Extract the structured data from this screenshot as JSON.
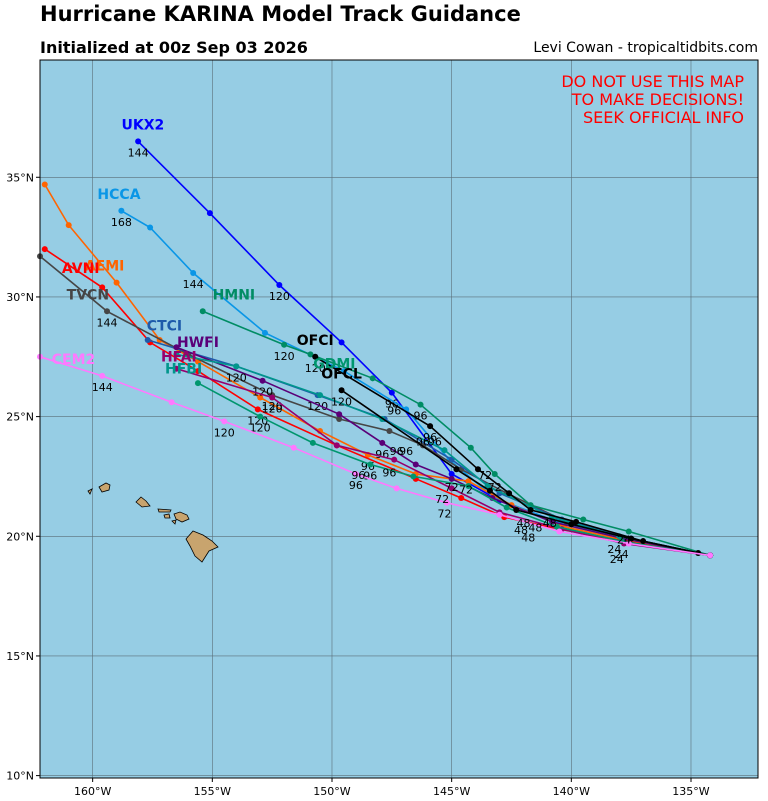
{
  "header": {
    "title": "Hurricane KARINA Model Track Guidance",
    "subtitle": "Initialized at 00z Sep 03 2026",
    "credit": "Levi Cowan - tropicaltidbits.com"
  },
  "warning": [
    "DO NOT USE THIS MAP",
    "TO MAKE DECISIONS!",
    "SEEK OFFICIAL INFO"
  ],
  "colors": {
    "ocean": "#96cde4",
    "land": "#c8a46e",
    "grid": "#5a6e78"
  },
  "axes": {
    "lon_range": [
      -162.2,
      -132.2
    ],
    "lat_range": [
      9.9,
      39.9
    ],
    "x_ticks": [
      -160,
      -155,
      -150,
      -145,
      -140,
      -135
    ],
    "x_tick_labels": [
      "160°W",
      "155°W",
      "150°W",
      "145°W",
      "140°W",
      "135°W"
    ],
    "y_ticks": [
      10,
      15,
      20,
      25,
      30,
      35
    ],
    "y_tick_labels": [
      "10°N",
      "15°N",
      "20°N",
      "25°N",
      "30°N",
      "35°N"
    ]
  },
  "chart_data": {
    "type": "map-tracks",
    "tracks": [
      {
        "name": "UKX2",
        "color": "#0000ff",
        "label_at": [
          -157.9,
          37.0
        ],
        "points": [
          [
            -134.2,
            19.2
          ],
          [
            -137.5,
            19.9
          ],
          [
            -140.3,
            20.5
          ],
          [
            -143.0,
            21.5
          ],
          [
            -145.0,
            22.6
          ],
          [
            -147.5,
            26.0
          ],
          [
            -149.6,
            28.1
          ],
          [
            -152.2,
            30.5
          ],
          [
            -155.1,
            33.5
          ],
          [
            -158.1,
            36.5
          ]
        ],
        "hour_labels": [
          {
            "pos": [
              -158.1,
              36.5
            ],
            "text": "144"
          },
          {
            "pos": [
              -152.2,
              30.5
            ],
            "text": "120"
          },
          {
            "pos": [
              -147.5,
              26.0
            ],
            "text": "96"
          }
        ]
      },
      {
        "name": "HCCA",
        "color": "#0a96e6",
        "label_at": [
          -158.9,
          34.1
        ],
        "points": [
          [
            -134.2,
            19.2
          ],
          [
            -137.8,
            19.9
          ],
          [
            -140.6,
            20.6
          ],
          [
            -143.2,
            21.6
          ],
          [
            -145.1,
            23.2
          ],
          [
            -146.9,
            25.3
          ],
          [
            -149.5,
            26.9
          ],
          [
            -152.8,
            28.5
          ],
          [
            -155.8,
            31.0
          ],
          [
            -157.6,
            32.9
          ],
          [
            -158.8,
            33.6
          ]
        ],
        "hour_labels": [
          {
            "pos": [
              -158.8,
              33.6
            ],
            "text": "168"
          },
          {
            "pos": [
              -155.8,
              31.0
            ],
            "text": "144"
          }
        ]
      },
      {
        "name": "AEMI",
        "color": "#ff6400",
        "label_at": [
          -159.5,
          31.1
        ],
        "points": [
          [
            -134.2,
            19.2
          ],
          [
            -137.6,
            19.8
          ],
          [
            -140.3,
            20.4
          ],
          [
            -142.5,
            21.3
          ],
          [
            -144.3,
            22.3
          ],
          [
            -146.5,
            22.6
          ],
          [
            -148.5,
            23.4
          ],
          [
            -150.5,
            24.4
          ],
          [
            -153.0,
            25.8
          ],
          [
            -155.6,
            27.3
          ],
          [
            -157.2,
            28.2
          ],
          [
            -159.0,
            30.6
          ],
          [
            -161.0,
            33.0
          ],
          [
            -162.0,
            34.7
          ]
        ],
        "hour_labels": [
          {
            "pos": [
              -148.5,
              23.4
            ],
            "text": "96"
          }
        ]
      },
      {
        "name": "AVNI",
        "color": "#ff0000",
        "label_at": [
          -160.5,
          31.0
        ],
        "points": [
          [
            -134.2,
            19.2
          ],
          [
            -137.8,
            19.8
          ],
          [
            -140.5,
            20.3
          ],
          [
            -142.8,
            20.8
          ],
          [
            -144.6,
            21.6
          ],
          [
            -146.5,
            22.4
          ],
          [
            -149.8,
            23.8
          ],
          [
            -153.1,
            25.3
          ],
          [
            -155.6,
            26.9
          ],
          [
            -157.6,
            28.1
          ],
          [
            -159.6,
            30.4
          ],
          [
            -162.0,
            32.0
          ]
        ],
        "hour_labels": [
          {
            "pos": [
              -153.1,
              25.3
            ],
            "text": "120"
          }
        ]
      },
      {
        "name": "TVCN",
        "color": "#464646",
        "label_at": [
          -160.2,
          29.9
        ],
        "points": [
          [
            -134.2,
            19.2
          ],
          [
            -137.5,
            19.9
          ],
          [
            -140.2,
            20.6
          ],
          [
            -142.7,
            21.8
          ],
          [
            -144.6,
            22.8
          ],
          [
            -146.2,
            23.8
          ],
          [
            -147.6,
            24.4
          ],
          [
            -149.7,
            24.9
          ],
          [
            -152.5,
            25.9
          ],
          [
            -156.0,
            27.6
          ],
          [
            -159.4,
            29.4
          ],
          [
            -162.2,
            31.7
          ]
        ],
        "hour_labels": [
          {
            "pos": [
              -159.4,
              29.4
            ],
            "text": "144"
          },
          {
            "pos": [
              -152.5,
              25.9
            ],
            "text": "120"
          }
        ]
      },
      {
        "name": "CTCI",
        "color": "#1e5aaa",
        "label_at": [
          -157.0,
          28.6
        ],
        "points": [
          [
            -134.2,
            19.2
          ],
          [
            -137.5,
            19.9
          ],
          [
            -140.4,
            20.7
          ],
          [
            -143.0,
            21.8
          ],
          [
            -145.0,
            23.2
          ],
          [
            -147.8,
            24.9
          ],
          [
            -150.6,
            25.9
          ],
          [
            -154.0,
            27.1
          ],
          [
            -157.7,
            28.2
          ]
        ],
        "hour_labels": [
          {
            "pos": [
              -150.6,
              25.9
            ],
            "text": "120"
          }
        ]
      },
      {
        "name": "HMNI",
        "color": "#008c64",
        "label_at": [
          -154.1,
          29.9
        ],
        "points": [
          [
            -134.2,
            19.2
          ],
          [
            -137.6,
            20.2
          ],
          [
            -139.5,
            20.7
          ],
          [
            -141.7,
            21.3
          ],
          [
            -143.2,
            22.6
          ],
          [
            -144.2,
            23.7
          ],
          [
            -146.3,
            25.5
          ],
          [
            -148.3,
            26.6
          ],
          [
            -150.9,
            27.6
          ],
          [
            -152.0,
            28.0
          ],
          [
            -155.4,
            29.4
          ]
        ],
        "hour_labels": [
          {
            "pos": [
              -152.0,
              28.0
            ],
            "text": "120"
          },
          {
            "pos": [
              -146.3,
              25.5
            ],
            "text": "96"
          }
        ]
      },
      {
        "name": "HWFI",
        "color": "#5a0078",
        "label_at": [
          -155.6,
          27.9
        ],
        "points": [
          [
            -134.2,
            19.2
          ],
          [
            -137.8,
            19.9
          ],
          [
            -140.8,
            20.6
          ],
          [
            -143.3,
            21.6
          ],
          [
            -145.0,
            22.4
          ],
          [
            -146.5,
            23.0
          ],
          [
            -147.9,
            23.9
          ],
          [
            -149.7,
            25.1
          ],
          [
            -152.9,
            26.5
          ],
          [
            -156.5,
            27.9
          ]
        ],
        "hour_labels": [
          {
            "pos": [
              -152.9,
              26.5
            ],
            "text": "120"
          },
          {
            "pos": [
              -147.9,
              23.9
            ],
            "text": "96"
          }
        ]
      },
      {
        "name": "HFAI",
        "color": "#96006e",
        "label_at": [
          -156.4,
          27.3
        ],
        "points": [
          [
            -134.2,
            19.2
          ],
          [
            -137.8,
            19.7
          ],
          [
            -140.4,
            20.3
          ],
          [
            -143.0,
            21.0
          ],
          [
            -145.0,
            22.0
          ],
          [
            -147.4,
            23.2
          ],
          [
            -149.8,
            23.8
          ],
          [
            -152.5,
            25.8
          ],
          [
            -156.5,
            27.0
          ]
        ],
        "hour_labels": [
          {
            "pos": [
              -152.5,
              25.8
            ],
            "text": "120"
          }
        ]
      },
      {
        "name": "HFBI",
        "color": "#00968c",
        "label_at": [
          -156.2,
          26.8
        ],
        "points": [
          [
            -134.2,
            19.2
          ],
          [
            -138.0,
            20.0
          ],
          [
            -140.8,
            20.8
          ],
          [
            -143.5,
            22.1
          ],
          [
            -145.3,
            23.6
          ],
          [
            -147.9,
            24.9
          ],
          [
            -150.5,
            25.9
          ],
          [
            -154.0,
            27.1
          ],
          [
            -156.5,
            27.6
          ]
        ],
        "hour_labels": [
          {
            "pos": [
              -154.0,
              27.1
            ],
            "text": "120"
          }
        ]
      },
      {
        "name": "GDMI",
        "color": "#00966e",
        "label_at": [
          -149.9,
          27.0
        ],
        "points": [
          [
            -134.2,
            19.2
          ],
          [
            -137.9,
            19.8
          ],
          [
            -140.6,
            20.4
          ],
          [
            -142.7,
            21.2
          ],
          [
            -144.3,
            22.1
          ],
          [
            -146.6,
            22.5
          ],
          [
            -148.4,
            23.0
          ],
          [
            -150.8,
            23.9
          ],
          [
            -153.0,
            25.0
          ],
          [
            -155.6,
            26.4
          ]
        ],
        "hour_labels": [
          {
            "pos": [
              -153.0,
              25.0
            ],
            "text": "120"
          },
          {
            "pos": [
              -148.4,
              23.0
            ],
            "text": "96"
          }
        ]
      },
      {
        "name": "OFCI",
        "color": "#000000",
        "label_at": [
          -150.7,
          28.0
        ],
        "points": [
          [
            -134.2,
            19.2
          ],
          [
            -137.0,
            19.8
          ],
          [
            -139.8,
            20.6
          ],
          [
            -141.7,
            21.1
          ],
          [
            -142.6,
            21.8
          ],
          [
            -143.9,
            22.8
          ],
          [
            -145.9,
            24.6
          ],
          [
            -150.7,
            27.5
          ]
        ],
        "hour_labels": [
          {
            "pos": [
              -145.9,
              24.6
            ],
            "text": "96"
          },
          {
            "pos": [
              -150.7,
              27.5
            ],
            "text": "120"
          }
        ]
      },
      {
        "name": "OFCL",
        "color": "#000000",
        "label_at": [
          -149.6,
          26.6
        ],
        "points": [
          [
            -134.7,
            19.3
          ],
          [
            -137.5,
            19.9
          ],
          [
            -140.0,
            20.5
          ],
          [
            -142.3,
            21.1
          ],
          [
            -143.4,
            21.9
          ],
          [
            -144.8,
            22.8
          ],
          [
            -149.6,
            26.1
          ]
        ],
        "hour_labels": [
          {
            "pos": [
              -149.6,
              26.1
            ],
            "text": "120"
          }
        ]
      },
      {
        "name": "CEM2",
        "color": "#ff78ff",
        "label_at": [
          -160.8,
          27.2
        ],
        "points": [
          [
            -134.2,
            19.2
          ],
          [
            -137.6,
            19.7
          ],
          [
            -140.5,
            20.2
          ],
          [
            -143.0,
            20.9
          ],
          [
            -145.2,
            21.4
          ],
          [
            -147.3,
            22.0
          ],
          [
            -149.0,
            22.6
          ],
          [
            -151.6,
            23.7
          ],
          [
            -154.5,
            24.8
          ],
          [
            -156.7,
            25.6
          ],
          [
            -159.6,
            26.7
          ],
          [
            -162.2,
            27.5
          ]
        ],
        "hour_labels": [
          {
            "pos": [
              -159.6,
              26.7
            ],
            "text": "144"
          },
          {
            "pos": [
              -154.5,
              24.8
            ],
            "text": "120"
          },
          {
            "pos": [
              -149.0,
              22.6
            ],
            "text": "96"
          }
        ]
      }
    ],
    "hour_clusters": [
      {
        "pos": [
          -145.0,
          22.1
        ],
        "text": "72"
      },
      {
        "pos": [
          -144.4,
          22.0
        ],
        "text": "72"
      },
      {
        "pos": [
          -145.4,
          21.6
        ],
        "text": "72"
      },
      {
        "pos": [
          -145.3,
          21.0
        ],
        "text": "72"
      },
      {
        "pos": [
          -143.6,
          22.6
        ],
        "text": "72"
      },
      {
        "pos": [
          -143.2,
          22.1
        ],
        "text": "72"
      },
      {
        "pos": [
          -142.0,
          20.6
        ],
        "text": "48"
      },
      {
        "pos": [
          -141.5,
          20.4
        ],
        "text": "48"
      },
      {
        "pos": [
          -140.9,
          20.6
        ],
        "text": "48"
      },
      {
        "pos": [
          -142.1,
          20.3
        ],
        "text": "48"
      },
      {
        "pos": [
          -141.8,
          20.0
        ],
        "text": "48"
      },
      {
        "pos": [
          -137.8,
          19.9
        ],
        "text": "24"
      },
      {
        "pos": [
          -138.2,
          19.5
        ],
        "text": "24"
      },
      {
        "pos": [
          -137.9,
          19.3
        ],
        "text": "24"
      },
      {
        "pos": [
          -138.1,
          19.1
        ],
        "text": "24"
      },
      {
        "pos": [
          -146.2,
          24.0
        ],
        "text": "96"
      },
      {
        "pos": [
          -145.7,
          24.0
        ],
        "text": "96"
      },
      {
        "pos": [
          -146.9,
          23.6
        ],
        "text": "96"
      },
      {
        "pos": [
          -147.3,
          23.6
        ],
        "text": "96"
      },
      {
        "pos": [
          -147.6,
          22.7
        ],
        "text": "96"
      },
      {
        "pos": [
          -148.9,
          22.6
        ],
        "text": "96"
      },
      {
        "pos": [
          -147.4,
          25.3
        ],
        "text": "96"
      }
    ]
  }
}
